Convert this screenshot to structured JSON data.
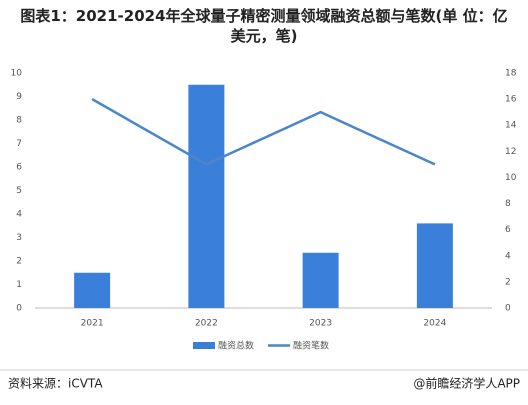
{
  "chart_data": {
    "type": "bar-line",
    "title": "图表1：2021-2024年全球量子精密测量领域融资总额与笔数(单 位：亿美元，笔)",
    "categories": [
      "2021",
      "2022",
      "2023",
      "2024"
    ],
    "series": [
      {
        "name": "融资总数",
        "type": "bar",
        "color": "#3a7fd9",
        "values": [
          1.5,
          9.5,
          2.35,
          3.6
        ]
      },
      {
        "name": "融资笔数",
        "type": "line",
        "axis": "y2",
        "color": "#4a86c8",
        "values": [
          16,
          11,
          15,
          11
        ]
      }
    ],
    "ylim": [
      0,
      10
    ],
    "yticks": [
      0,
      1,
      2,
      3,
      4,
      5,
      6,
      7,
      8,
      9,
      10
    ],
    "y2lim": [
      0,
      18
    ],
    "y2ticks": [
      0,
      2,
      4,
      6,
      8,
      10,
      12,
      14,
      16,
      18
    ],
    "source": "资料来源：iCVTA",
    "credit": "@前瞻经济学人APP"
  }
}
